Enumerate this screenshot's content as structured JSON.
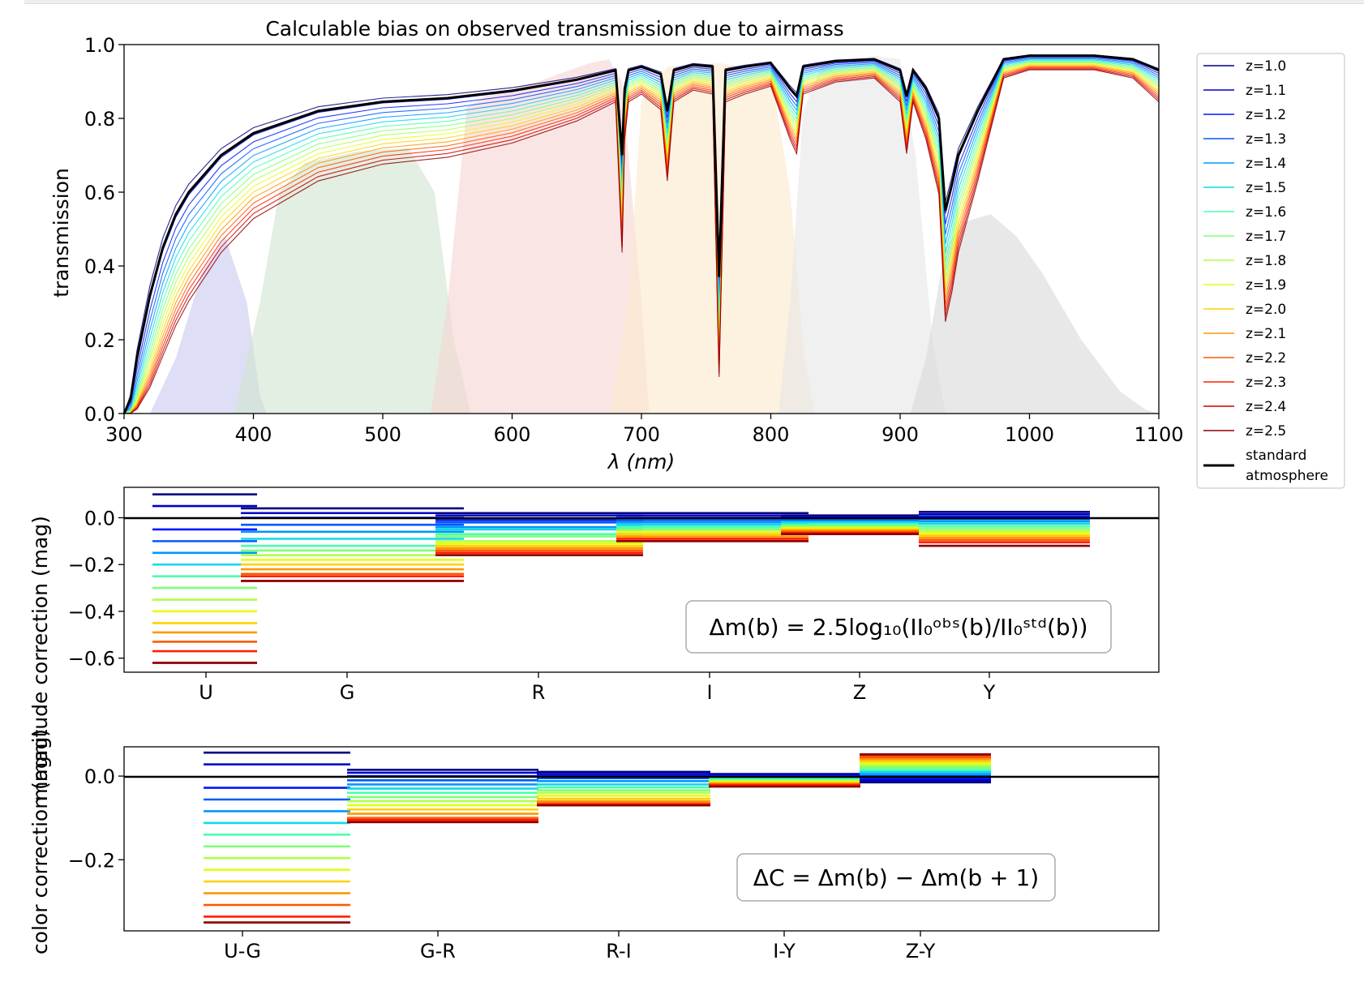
{
  "chart_data": [
    {
      "type": "line",
      "title": "Calculable bias on observed transmission due to airmass",
      "xlabel": "λ (nm)",
      "ylabel": "transmission",
      "xlim": [
        300,
        1100
      ],
      "ylim": [
        0,
        1.0
      ],
      "xticks": [
        "300",
        "400",
        "500",
        "600",
        "700",
        "800",
        "900",
        "1000",
        "1100"
      ],
      "yticks": [
        "0.0",
        "0.2",
        "0.4",
        "0.6",
        "0.8",
        "1.0"
      ],
      "grid": false,
      "legend_position": "outside-right",
      "legend": [
        "z=1.0",
        "z=1.1",
        "z=1.2",
        "z=1.3",
        "z=1.4",
        "z=1.5",
        "z=1.6",
        "z=1.7",
        "z=1.8",
        "z=1.9",
        "z=2.0",
        "z=2.1",
        "z=2.2",
        "z=2.3",
        "z=2.4",
        "z=2.5",
        "standard\n atmosphere"
      ],
      "standard_atmosphere": {
        "name": "standard\n atmosphere",
        "color": "#000000",
        "x": [
          300,
          305,
          310,
          320,
          330,
          340,
          350,
          375,
          400,
          450,
          500,
          550,
          600,
          650,
          680,
          685,
          687,
          690,
          700,
          715,
          720,
          725,
          740,
          755,
          760,
          765,
          780,
          800,
          815,
          820,
          825,
          850,
          880,
          900,
          905,
          910,
          920,
          930,
          935,
          940,
          945,
          960,
          980,
          1000,
          1050,
          1080,
          1100
        ],
        "y": [
          0.0,
          0.04,
          0.15,
          0.32,
          0.45,
          0.54,
          0.6,
          0.7,
          0.76,
          0.82,
          0.845,
          0.855,
          0.875,
          0.905,
          0.93,
          0.7,
          0.88,
          0.93,
          0.94,
          0.92,
          0.82,
          0.93,
          0.945,
          0.94,
          0.37,
          0.93,
          0.94,
          0.95,
          0.88,
          0.86,
          0.94,
          0.955,
          0.96,
          0.93,
          0.86,
          0.93,
          0.88,
          0.8,
          0.55,
          0.62,
          0.7,
          0.82,
          0.96,
          0.97,
          0.97,
          0.96,
          0.93
        ]
      },
      "airmass_curves": {
        "labels": [
          "z=1.0",
          "z=1.1",
          "z=1.2",
          "z=1.3",
          "z=1.4",
          "z=1.5",
          "z=1.6",
          "z=1.7",
          "z=1.8",
          "z=1.9",
          "z=2.0",
          "z=2.1",
          "z=2.2",
          "z=2.3",
          "z=2.4",
          "z=2.5"
        ],
        "airmass": [
          1.0,
          1.1,
          1.2,
          1.3,
          1.4,
          1.5,
          1.6,
          1.7,
          1.8,
          1.9,
          2.0,
          2.1,
          2.2,
          2.3,
          2.4,
          2.5
        ],
        "colors": [
          "#00007f",
          "#0000c8",
          "#0018ff",
          "#0058ff",
          "#0098ff",
          "#10d8e7",
          "#49ffad",
          "#7dff7a",
          "#adff49",
          "#e3ff13",
          "#ffd100",
          "#ff9700",
          "#ff5a00",
          "#ff1e00",
          "#cd0000",
          "#8e0000"
        ],
        "note": "same shape as standard atmosphere, transmission scaled by airmass"
      },
      "filter_bands": [
        {
          "name": "U",
          "color": "#c8c8f0",
          "x": [
            320,
            340,
            360,
            378,
            395,
            405,
            410
          ],
          "y": [
            0.0,
            0.15,
            0.38,
            0.48,
            0.3,
            0.05,
            0.0
          ]
        },
        {
          "name": "G",
          "color": "#cfe5cf",
          "x": [
            385,
            405,
            420,
            440,
            480,
            520,
            540,
            555,
            568
          ],
          "y": [
            0.0,
            0.3,
            0.6,
            0.68,
            0.71,
            0.72,
            0.6,
            0.2,
            0.0
          ]
        },
        {
          "name": "R",
          "color": "#f7d3d3",
          "x": [
            537,
            550,
            565,
            580,
            620,
            660,
            675,
            685,
            700,
            706
          ],
          "y": [
            0.0,
            0.3,
            0.83,
            0.86,
            0.9,
            0.95,
            0.96,
            0.9,
            0.3,
            0.0
          ]
        },
        {
          "name": "I",
          "color": "#fbe7cc",
          "x": [
            676,
            690,
            700,
            720,
            760,
            800,
            815,
            826,
            834
          ],
          "y": [
            0.0,
            0.3,
            0.85,
            0.94,
            0.95,
            0.93,
            0.6,
            0.15,
            0.0
          ]
        },
        {
          "name": "Z",
          "color": "#e6e6e6",
          "x": [
            806,
            815,
            825,
            840,
            880,
            900,
            912,
            925,
            935
          ],
          "y": [
            0.0,
            0.3,
            0.82,
            0.95,
            0.97,
            0.96,
            0.7,
            0.2,
            0.0
          ]
        },
        {
          "name": "Y",
          "color": "#d9d9d9",
          "x": [
            908,
            920,
            935,
            950,
            970,
            990,
            1010,
            1040,
            1070,
            1090,
            1100
          ],
          "y": [
            0.0,
            0.15,
            0.45,
            0.52,
            0.54,
            0.48,
            0.38,
            0.2,
            0.06,
            0.01,
            0.0
          ]
        }
      ]
    },
    {
      "type": "bar",
      "ylabel": "magnitude correction (mag)",
      "ylim": [
        -0.66,
        0.13
      ],
      "yticks": [
        "0.0",
        "−0.2",
        "−0.4",
        "−0.6"
      ],
      "categories": [
        "U",
        "G",
        "R",
        "I",
        "Z",
        "Y"
      ],
      "annotation": "Δm(b) = 2.5log₁₀(II₀ᵒᵇˢ(b)/II₀ˢᵗᵈ(b))",
      "reference_line": 0.0,
      "series_by_airmass": [
        "z=1.0",
        "z=1.1",
        "z=1.2",
        "z=1.3",
        "z=1.4",
        "z=1.5",
        "z=1.6",
        "z=1.7",
        "z=1.8",
        "z=1.9",
        "z=2.0",
        "z=2.1",
        "z=2.2",
        "z=2.3",
        "z=2.4",
        "z=2.5"
      ],
      "values": {
        "U": [
          0.1,
          0.05,
          -0.05,
          -0.1,
          -0.15,
          -0.2,
          -0.25,
          -0.3,
          -0.35,
          -0.4,
          -0.45,
          -0.49,
          -0.53,
          -0.57,
          -0.62,
          -0.62
        ],
        "G": [
          0.04,
          0.02,
          0.0,
          -0.03,
          -0.06,
          -0.09,
          -0.12,
          -0.14,
          -0.16,
          -0.18,
          -0.2,
          -0.22,
          -0.24,
          -0.25,
          -0.27,
          -0.27
        ],
        "R": [
          0.02,
          0.01,
          -0.01,
          -0.02,
          -0.04,
          -0.05,
          -0.07,
          -0.08,
          -0.1,
          -0.11,
          -0.12,
          -0.13,
          -0.14,
          -0.15,
          -0.16,
          -0.16
        ],
        "I": [
          0.02,
          0.01,
          0.0,
          -0.01,
          -0.02,
          -0.03,
          -0.04,
          -0.05,
          -0.06,
          -0.06,
          -0.07,
          -0.08,
          -0.09,
          -0.09,
          -0.1,
          -0.1
        ],
        "Z": [
          0.01,
          0.005,
          0.0,
          -0.01,
          -0.015,
          -0.02,
          -0.03,
          -0.035,
          -0.04,
          -0.045,
          -0.05,
          -0.055,
          -0.06,
          -0.065,
          -0.07,
          -0.07
        ],
        "Y": [
          0.025,
          0.015,
          0.005,
          -0.005,
          -0.015,
          -0.025,
          -0.035,
          -0.045,
          -0.055,
          -0.065,
          -0.075,
          -0.085,
          -0.095,
          -0.105,
          -0.12,
          -0.12
        ]
      }
    },
    {
      "type": "bar",
      "ylabel": "color correction (mag)",
      "ylim": [
        -0.37,
        0.07
      ],
      "yticks": [
        "0.0",
        "−0.2"
      ],
      "categories": [
        "U-G",
        "G-R",
        "R-I",
        "I-Y",
        "Z-Y"
      ],
      "annotation": "ΔC = Δm(b) − Δm(b + 1)",
      "reference_line": 0.0,
      "series_by_airmass": [
        "z=1.0",
        "z=1.1",
        "z=1.2",
        "z=1.3",
        "z=1.4",
        "z=1.5",
        "z=1.6",
        "z=1.7",
        "z=1.8",
        "z=1.9",
        "z=2.0",
        "z=2.1",
        "z=2.2",
        "z=2.3",
        "z=2.4",
        "z=2.5"
      ],
      "values": {
        "U-G": [
          0.056,
          0.028,
          -0.028,
          -0.056,
          -0.084,
          -0.112,
          -0.14,
          -0.168,
          -0.196,
          -0.224,
          -0.252,
          -0.28,
          -0.308,
          -0.336,
          -0.35,
          -0.35
        ],
        "G-R": [
          0.015,
          0.008,
          0.0,
          -0.01,
          -0.02,
          -0.03,
          -0.04,
          -0.05,
          -0.06,
          -0.07,
          -0.08,
          -0.09,
          -0.1,
          -0.105,
          -0.11,
          -0.11
        ],
        "R-I": [
          0.01,
          0.005,
          0.0,
          -0.005,
          -0.012,
          -0.02,
          -0.027,
          -0.034,
          -0.04,
          -0.047,
          -0.054,
          -0.06,
          -0.065,
          -0.068,
          -0.07,
          -0.07
        ],
        "I-Y": [
          0.005,
          0.003,
          0.0,
          -0.002,
          -0.004,
          -0.006,
          -0.008,
          -0.01,
          -0.012,
          -0.014,
          -0.016,
          -0.018,
          -0.02,
          -0.022,
          -0.025,
          -0.025
        ],
        "Z-Y": [
          -0.015,
          -0.01,
          -0.005,
          0.0,
          0.005,
          0.01,
          0.015,
          0.02,
          0.025,
          0.03,
          0.035,
          0.04,
          0.045,
          0.05,
          0.052,
          0.052
        ]
      }
    }
  ]
}
